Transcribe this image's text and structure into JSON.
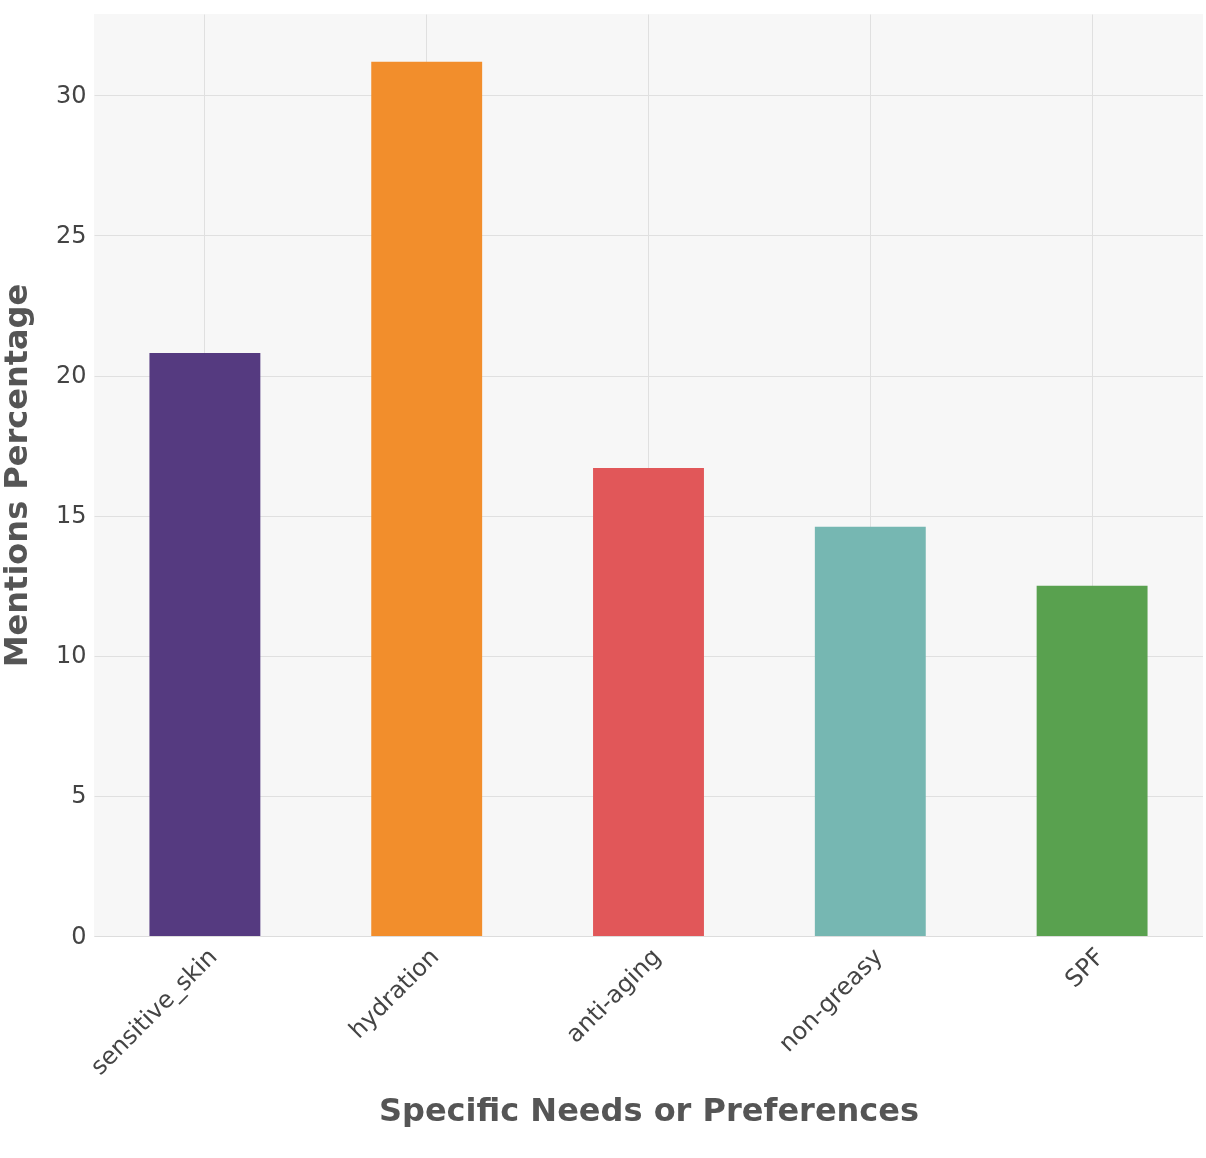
{
  "chart_data": {
    "type": "bar",
    "xlabel": "Specific Needs or Preferences",
    "ylabel": "Mentions Percentage",
    "categories": [
      "sensitive_skin",
      "hydration",
      "anti-aging",
      "non-greasy",
      "SPF"
    ],
    "values": [
      20.8,
      31.2,
      16.7,
      14.6,
      12.5
    ],
    "colors": [
      "#553a80",
      "#f28e2c",
      "#e15759",
      "#76b7b2",
      "#59a14f"
    ],
    "ylim": [
      0,
      32.9
    ],
    "yticks": [
      0,
      5,
      10,
      15,
      20,
      25,
      30
    ],
    "grid": true
  }
}
